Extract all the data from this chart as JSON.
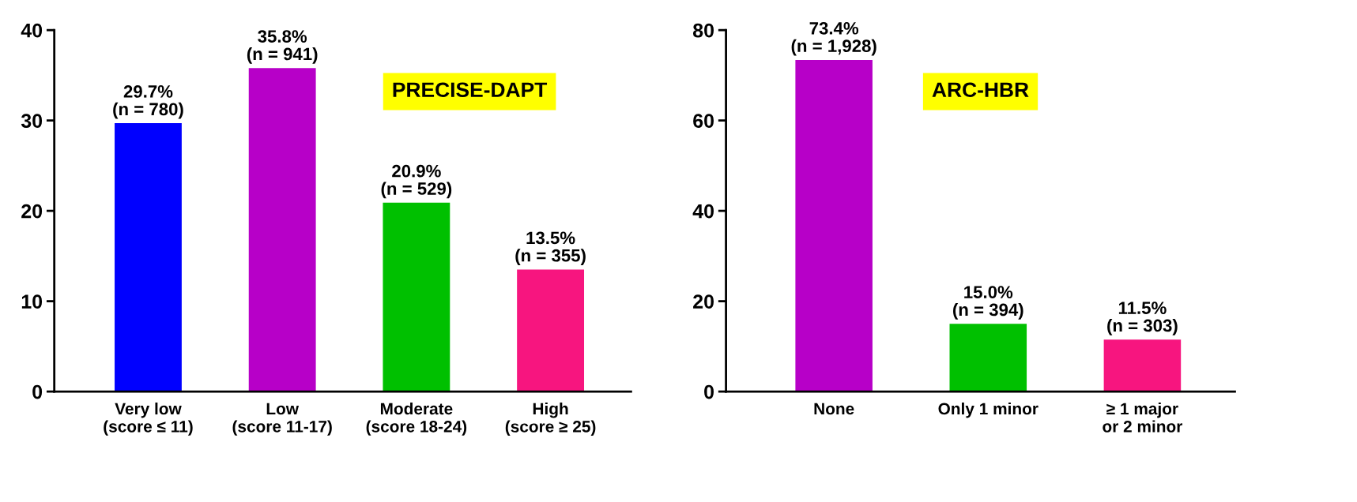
{
  "chart_data": [
    {
      "type": "bar",
      "title": "PRECISE-DAPT",
      "categories": [
        "Very low\n(score ≤ 11)",
        "Low\n(score 11-17)",
        "Moderate\n(score 18-24)",
        "High\n(score ≥ 25)"
      ],
      "values": [
        29.7,
        35.8,
        20.9,
        13.5
      ],
      "colors": [
        "#0000ff",
        "#b700c8",
        "#00c000",
        "#f7157f"
      ],
      "value_labels": [
        "29.7%\n(n = 780)",
        "35.8%\n(n = 941)",
        "20.9%\n(n = 529)",
        "13.5%\n(n = 355)"
      ],
      "ylim": [
        0,
        40
      ],
      "yticks": [
        0,
        10,
        20,
        30,
        40
      ],
      "grid": false
    },
    {
      "type": "bar",
      "title": "ARC-HBR",
      "categories": [
        "None",
        "Only 1 minor",
        "≥ 1 major\nor 2 minor"
      ],
      "values": [
        73.4,
        15.0,
        11.5
      ],
      "colors": [
        "#b700c8",
        "#00c000",
        "#f7157f"
      ],
      "value_labels": [
        "73.4%\n(n = 1,928)",
        "15.0%\n(n = 394)",
        "11.5%\n(n = 303)"
      ],
      "ylim": [
        0,
        80
      ],
      "yticks": [
        0,
        20,
        40,
        60,
        80
      ],
      "grid": false
    }
  ]
}
